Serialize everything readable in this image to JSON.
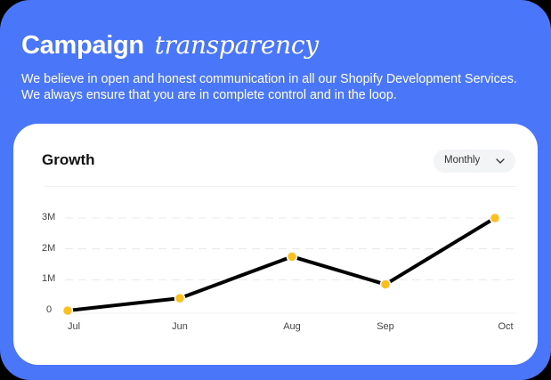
{
  "header": {
    "title_bold": "Campaign",
    "title_italic": "transparency",
    "description": "We believe in open and honest communication in all our Shopify Development Services. We always ensure that you are in complete control and in the loop."
  },
  "card": {
    "title": "Growth",
    "period_select": "Monthly",
    "period_icon": "chevron-down-icon"
  },
  "colors": {
    "background": "#4A76FA",
    "card": "#FFFFFF",
    "line": "#000000",
    "marker": "#FBBF24"
  },
  "chart_data": {
    "type": "line",
    "title": "Growth",
    "categories": [
      "Jul",
      "Jun",
      "Aug",
      "Sep",
      "Oct"
    ],
    "series": [
      {
        "name": "Growth",
        "values": [
          0,
          400000,
          1750000,
          850000,
          3000000
        ]
      }
    ],
    "yticks": [
      "0",
      "1M",
      "2M",
      "3M"
    ],
    "ylim": [
      0,
      3000000
    ],
    "xlabel": "",
    "ylabel": "",
    "grid": true,
    "legend": "none"
  }
}
